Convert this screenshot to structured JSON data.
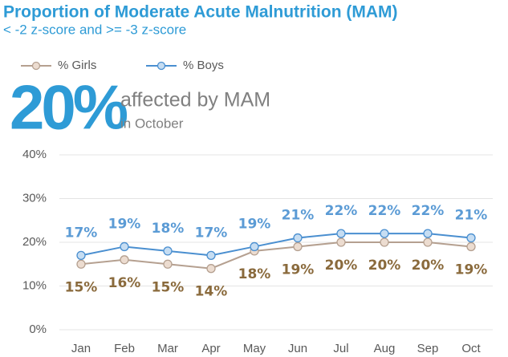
{
  "chart_data": {
    "type": "line",
    "title": "Proportion of Moderate Acute Malnutrition (MAM)",
    "subtitle": "< -2 z-score and >= -3 z-score",
    "headline": "20%",
    "headline_text": "affected by MAM",
    "headline_subtext": "in October",
    "categories": [
      "Jan",
      "Feb",
      "Mar",
      "Apr",
      "May",
      "Jun",
      "Jul",
      "Aug",
      "Sep",
      "Oct"
    ],
    "series": [
      {
        "name": "% Girls",
        "color": "#b5a090",
        "marker_fill": "#ecdcd0",
        "label_color": "#8a6a3c",
        "values": [
          15,
          16,
          15,
          14,
          18,
          19,
          20,
          20,
          20,
          19
        ],
        "value_labels": [
          "15%",
          "16%",
          "15%",
          "14%",
          "18%",
          "19%",
          "20%",
          "20%",
          "20%",
          "19%"
        ]
      },
      {
        "name": "% Boys",
        "color": "#4a8fd0",
        "marker_fill": "#c6ddf2",
        "label_color": "#5b9bd5",
        "values": [
          17,
          19,
          18,
          17,
          19,
          21,
          22,
          22,
          22,
          21
        ],
        "value_labels": [
          "17%",
          "19%",
          "18%",
          "17%",
          "19%",
          "21%",
          "22%",
          "22%",
          "22%",
          "21%"
        ]
      }
    ],
    "ylim": [
      0,
      40
    ],
    "yticks": [
      {
        "value": 0,
        "label": "0%"
      },
      {
        "value": 10,
        "label": "10%"
      },
      {
        "value": 20,
        "label": "20%"
      },
      {
        "value": 30,
        "label": "30%"
      },
      {
        "value": 40,
        "label": "40%"
      }
    ],
    "grid": true
  }
}
